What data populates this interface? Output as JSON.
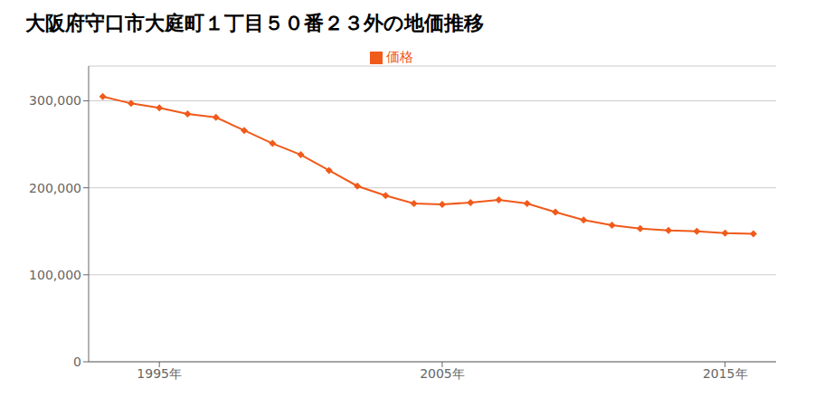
{
  "chart_data": {
    "type": "line",
    "title": "大阪府守口市大庭町１丁目５０番２３外の地価推移",
    "x": [
      1993,
      1994,
      1995,
      1996,
      1997,
      1998,
      1999,
      2000,
      2001,
      2002,
      2003,
      2004,
      2005,
      2006,
      2007,
      2008,
      2009,
      2010,
      2011,
      2012,
      2013,
      2014,
      2015,
      2016
    ],
    "series": [
      {
        "name": "価格",
        "color": "#f05a1a",
        "marker": "diamond",
        "values": [
          305000,
          297000,
          292000,
          285000,
          281000,
          266000,
          251000,
          238000,
          220000,
          202000,
          191000,
          182000,
          181000,
          183000,
          186000,
          182000,
          172000,
          163000,
          157000,
          153000,
          151000,
          150000,
          148000,
          147000
        ]
      }
    ],
    "xlim": [
      1992.5,
      2016.8
    ],
    "xticks": [
      {
        "value": 1995,
        "label": "1995年"
      },
      {
        "value": 2005,
        "label": "2005年"
      },
      {
        "value": 2015,
        "label": "2015年"
      }
    ],
    "ylim": [
      0,
      340000
    ],
    "yticks": [
      0,
      {
        "value": 100000,
        "label": "100,000"
      },
      {
        "value": 200000,
        "label": "200,000"
      },
      {
        "value": 300000,
        "label": "300,000"
      }
    ],
    "grid": "y",
    "legend": "top"
  }
}
